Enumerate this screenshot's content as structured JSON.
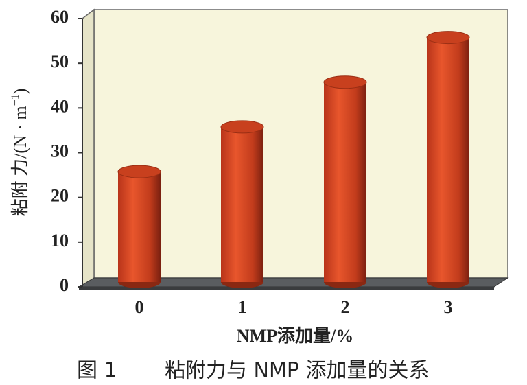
{
  "chart_data": {
    "type": "bar3d",
    "categories": [
      "0",
      "1",
      "2",
      "3"
    ],
    "values": [
      25,
      35,
      45,
      55
    ],
    "color": "#d4421f",
    "ylim": [
      0,
      60
    ],
    "yticks": [
      0,
      10,
      20,
      30,
      40,
      50,
      60
    ],
    "x_label": "NMP添加量/%",
    "y_label": {
      "text": "粘附 力/(N · m",
      "superscript": "−1",
      "suffix": ")"
    },
    "figure_number": "图 1",
    "caption": "粘附力与 NMP 添加量的关系"
  }
}
